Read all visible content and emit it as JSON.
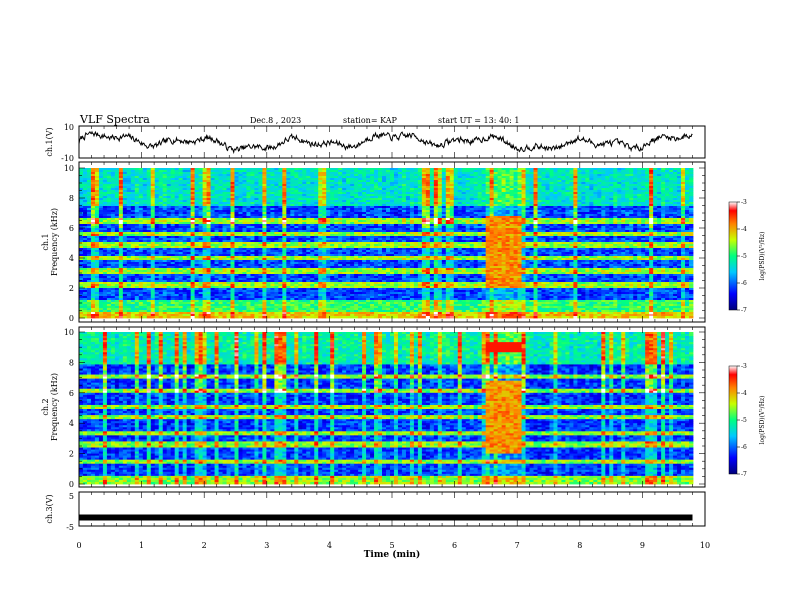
{
  "header": {
    "title": "VLF Spectra",
    "date": "Dec.8 , 2023",
    "station": "station= KAP",
    "start": "start  UT  =   13: 40: 1"
  },
  "chart_data": [
    {
      "type": "line",
      "panel": "ch1-waveform",
      "ylabel": "ch.1(V)",
      "ylim": [
        -10,
        10
      ],
      "yticks": [
        "10",
        "-10"
      ],
      "xlim": [
        0,
        10
      ],
      "data_xrange_min": [
        0,
        9.8
      ],
      "description": "noisy waveform roughly between -8 and +8 V"
    },
    {
      "type": "heatmap",
      "panel": "ch1-spectrogram",
      "ylabel_line1": "ch.1",
      "ylabel_line2": "Frequency  (kHz)",
      "ylim": [
        0,
        10
      ],
      "yticks": [
        "0",
        "2",
        "4",
        "6",
        "8",
        "10"
      ],
      "xlim": [
        0,
        10
      ],
      "burst_interval_min": [
        6.45,
        7.05
      ],
      "colorbar": {
        "label": "log(PSD)(V²/Hz)",
        "range": [
          -7,
          -3
        ],
        "ticks": [
          "-3",
          "-4",
          "-5",
          "-6",
          "-7"
        ]
      }
    },
    {
      "type": "heatmap",
      "panel": "ch2-spectrogram",
      "ylabel_line1": "ch.2",
      "ylabel_line2": "Frequency  (kHz)",
      "ylim": [
        0,
        10
      ],
      "yticks": [
        "0",
        "2",
        "4",
        "6",
        "8",
        "10"
      ],
      "xlim": [
        0,
        10
      ],
      "burst_interval_min": [
        6.45,
        7.05
      ],
      "colorbar": {
        "label": "log(PSD)(V²/Hz)",
        "range": [
          -7,
          -3
        ],
        "ticks": [
          "-3",
          "-4",
          "-5",
          "-6",
          "-7"
        ]
      }
    },
    {
      "type": "line",
      "panel": "ch3-signal",
      "ylabel": "ch.3(V)",
      "ylim": [
        -5,
        5
      ],
      "yticks": [
        "5",
        "-5"
      ],
      "xlim": [
        0,
        10
      ],
      "xlabel": "Time  (min)",
      "xticks": [
        "0",
        "1",
        "2",
        "3",
        "4",
        "5",
        "6",
        "7",
        "8",
        "9",
        "10"
      ],
      "level_V": -2.5,
      "data_xrange_min": [
        0,
        9.8
      ]
    }
  ]
}
